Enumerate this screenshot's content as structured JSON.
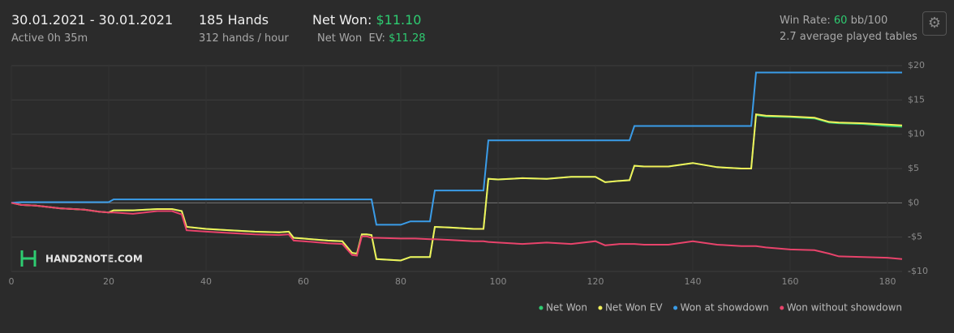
{
  "header": {
    "date_range": "30.01.2021 - 30.01.2021",
    "active": "Active 0h 35m",
    "hands": "185 Hands",
    "hands_per_hour": "312 hands / hour",
    "net_won_label": "Net Won:",
    "net_won": "$11.10",
    "net_won_ev_label": "Net Won  EV:",
    "net_won_ev": "$11.28",
    "win_rate_label": "Win Rate:",
    "win_rate": "60",
    "win_rate_unit": "bb/100",
    "tables": "2.7 average played tables"
  },
  "watermark": "HAND2NOTE.COM",
  "chart_data": {
    "type": "line",
    "x": [
      0,
      2,
      5,
      10,
      15,
      18,
      20,
      21,
      25,
      30,
      33,
      35,
      36,
      40,
      45,
      50,
      55,
      57,
      58,
      60,
      65,
      68,
      70,
      71,
      72,
      73,
      74,
      75,
      80,
      82,
      83,
      86,
      87,
      90,
      95,
      97,
      98,
      100,
      105,
      110,
      115,
      120,
      122,
      125,
      127,
      128,
      130,
      135,
      140,
      145,
      150,
      152,
      153,
      155,
      160,
      165,
      168,
      170,
      175,
      180,
      183
    ],
    "series": [
      {
        "name": "Net Won",
        "color": "#2ecc71",
        "values": [
          0,
          -0.3,
          -0.4,
          -0.8,
          -1,
          -1.3,
          -1.4,
          -1.1,
          -1.1,
          -0.9,
          -0.9,
          -1.2,
          -3.5,
          -3.8,
          -4,
          -4.2,
          -4.3,
          -4.2,
          -5.1,
          -5.2,
          -5.5,
          -5.6,
          -7.3,
          -7.4,
          -4.6,
          -4.6,
          -4.7,
          -8.2,
          -8.4,
          -7.9,
          -7.9,
          -7.9,
          -3.5,
          -3.6,
          -3.8,
          -3.8,
          3.5,
          3.4,
          3.6,
          3.5,
          3.8,
          3.8,
          3,
          3.2,
          3.3,
          5.4,
          5.3,
          5.3,
          5.8,
          5.2,
          5,
          5,
          12.8,
          12.6,
          12.5,
          12.3,
          11.7,
          11.6,
          11.5,
          11.2,
          11.1
        ]
      },
      {
        "name": "Net Won  EV",
        "color": "#f1f05a",
        "values": [
          0,
          -0.3,
          -0.4,
          -0.8,
          -1,
          -1.3,
          -1.4,
          -1.1,
          -1.1,
          -0.9,
          -0.9,
          -1.2,
          -3.5,
          -3.8,
          -4,
          -4.2,
          -4.3,
          -4.2,
          -5.1,
          -5.2,
          -5.5,
          -5.6,
          -7.3,
          -7.4,
          -4.6,
          -4.6,
          -4.7,
          -8.2,
          -8.4,
          -7.9,
          -7.9,
          -7.9,
          -3.5,
          -3.6,
          -3.8,
          -3.8,
          3.5,
          3.4,
          3.6,
          3.5,
          3.8,
          3.8,
          3,
          3.2,
          3.3,
          5.4,
          5.3,
          5.3,
          5.8,
          5.2,
          5,
          5,
          12.9,
          12.7,
          12.6,
          12.4,
          11.8,
          11.7,
          11.6,
          11.4,
          11.28
        ]
      },
      {
        "name": "Won at showdown",
        "color": "#3a9ce8",
        "values": [
          0,
          0.1,
          0.1,
          0.1,
          0.1,
          0.1,
          0.1,
          0.5,
          0.5,
          0.5,
          0.5,
          0.5,
          0.5,
          0.5,
          0.5,
          0.5,
          0.5,
          0.5,
          0.5,
          0.5,
          0.5,
          0.5,
          0.5,
          0.5,
          0.5,
          0.5,
          0.5,
          -3.2,
          -3.2,
          -2.7,
          -2.7,
          -2.7,
          1.8,
          1.8,
          1.8,
          1.8,
          9.1,
          9.1,
          9.1,
          9.1,
          9.1,
          9.1,
          9.1,
          9.1,
          9.1,
          11.2,
          11.2,
          11.2,
          11.2,
          11.2,
          11.2,
          11.2,
          19,
          19,
          19,
          19,
          19,
          19,
          19,
          19,
          19
        ]
      },
      {
        "name": "Won without showdown",
        "color": "#e8436b",
        "values": [
          0,
          -0.3,
          -0.4,
          -0.8,
          -1,
          -1.3,
          -1.4,
          -1.4,
          -1.6,
          -1.2,
          -1.2,
          -1.7,
          -4,
          -4.2,
          -4.4,
          -4.6,
          -4.7,
          -4.6,
          -5.5,
          -5.6,
          -5.9,
          -6,
          -7.6,
          -7.7,
          -4.9,
          -4.9,
          -5.1,
          -5.1,
          -5.2,
          -5.2,
          -5.2,
          -5.3,
          -5.3,
          -5.4,
          -5.6,
          -5.6,
          -5.7,
          -5.8,
          -6,
          -5.8,
          -6,
          -5.6,
          -6.2,
          -6,
          -6,
          -6,
          -6.1,
          -6.1,
          -5.6,
          -6.1,
          -6.3,
          -6.3,
          -6.3,
          -6.5,
          -6.8,
          -6.9,
          -7.4,
          -7.8,
          -7.9,
          -8,
          -8.2
        ]
      }
    ],
    "xlim": [
      0,
      183
    ],
    "xticks": [
      0,
      20,
      40,
      60,
      80,
      100,
      120,
      140,
      160,
      180
    ],
    "ylim": [
      -10,
      20
    ],
    "yticks": [
      {
        "value": -10,
        "label": "-$10"
      },
      {
        "value": -5,
        "label": "-$5"
      },
      {
        "value": 0,
        "label": "$0"
      },
      {
        "value": 5,
        "label": "$5"
      },
      {
        "value": 10,
        "label": "$10"
      },
      {
        "value": 15,
        "label": "$15"
      },
      {
        "value": 20,
        "label": "$20"
      }
    ],
    "grid": true,
    "legend": "bottom-right"
  }
}
